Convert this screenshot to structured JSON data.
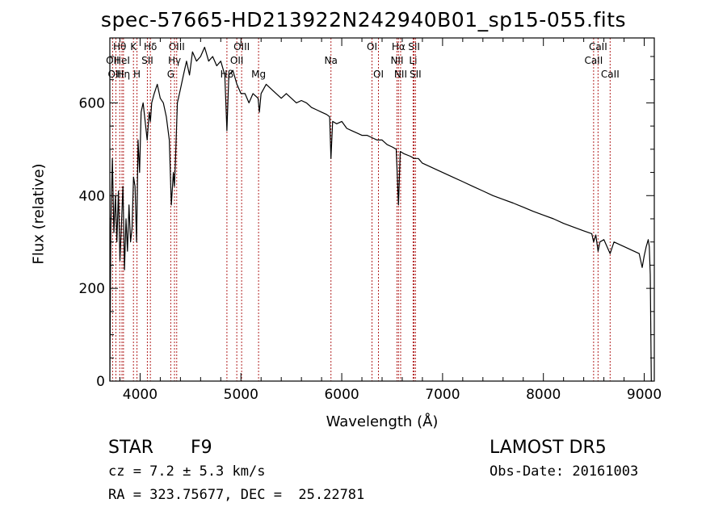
{
  "chart_data": {
    "type": "line",
    "title": "spec-57665-HD213922N242940B01_sp15-055.fits",
    "xlabel": "Wavelength (Å)",
    "ylabel": "Flux (relative)",
    "xlim": [
      3700,
      9100
    ],
    "ylim": [
      0,
      740
    ],
    "xticks": [
      4000,
      5000,
      6000,
      7000,
      8000,
      9000
    ],
    "yticks": [
      0,
      200,
      400,
      600
    ],
    "line_color": "#000000",
    "marker_color": "#b22222",
    "series": [
      {
        "x": [
          3700,
          3710,
          3725,
          3740,
          3755,
          3770,
          3785,
          3800,
          3815,
          3830,
          3845,
          3860,
          3875,
          3890,
          3905,
          3920,
          3935,
          3950,
          3965,
          3980,
          3995,
          4010,
          4030,
          4050,
          4070,
          4090,
          4102,
          4115,
          4140,
          4170,
          4200,
          4230,
          4260,
          4290,
          4310,
          4330,
          4340,
          4350,
          4370,
          4400,
          4430,
          4460,
          4490,
          4520,
          4560,
          4600,
          4640,
          4680,
          4720,
          4760,
          4800,
          4840,
          4861,
          4880,
          4920,
          4960,
          5000,
          5040,
          5080,
          5120,
          5170,
          5183,
          5200,
          5250,
          5300,
          5350,
          5400,
          5450,
          5500,
          5550,
          5600,
          5650,
          5700,
          5750,
          5800,
          5850,
          5880,
          5893,
          5910,
          5950,
          6000,
          6050,
          6100,
          6150,
          6200,
          6250,
          6300,
          6350,
          6400,
          6450,
          6500,
          6540,
          6563,
          6580,
          6620,
          6680,
          6720,
          6760,
          6800,
          6850,
          6900,
          6950,
          7000,
          7100,
          7200,
          7300,
          7400,
          7500,
          7600,
          7700,
          7800,
          7900,
          8000,
          8100,
          8200,
          8300,
          8400,
          8480,
          8498,
          8520,
          8542,
          8560,
          8600,
          8662,
          8700,
          8750,
          8800,
          8850,
          8900,
          8950,
          8980,
          9000,
          9020,
          9040,
          9050,
          9060,
          9070,
          9080
        ],
        "y": [
          0,
          330,
          480,
          320,
          400,
          300,
          410,
          260,
          340,
          420,
          240,
          350,
          280,
          380,
          300,
          330,
          440,
          420,
          300,
          520,
          450,
          580,
          600,
          560,
          520,
          580,
          560,
          600,
          620,
          640,
          610,
          600,
          570,
          520,
          380,
          450,
          420,
          470,
          600,
          630,
          660,
          690,
          660,
          710,
          690,
          700,
          720,
          690,
          700,
          680,
          690,
          660,
          540,
          660,
          670,
          640,
          620,
          620,
          600,
          620,
          610,
          580,
          620,
          640,
          630,
          620,
          610,
          620,
          610,
          600,
          605,
          600,
          590,
          585,
          580,
          575,
          570,
          480,
          560,
          555,
          560,
          545,
          540,
          535,
          530,
          530,
          525,
          520,
          520,
          510,
          505,
          500,
          380,
          495,
          490,
          485,
          480,
          480,
          470,
          465,
          460,
          455,
          450,
          440,
          430,
          420,
          410,
          400,
          392,
          384,
          375,
          366,
          358,
          350,
          340,
          332,
          324,
          318,
          300,
          315,
          280,
          300,
          305,
          275,
          300,
          295,
          290,
          285,
          280,
          275,
          245,
          270,
          290,
          305,
          290,
          230,
          0,
          0
        ]
      }
    ],
    "line_markers": [
      {
        "label": "Hθ",
        "x": 3798,
        "row": 1
      },
      {
        "label": "OII",
        "x": 3727,
        "row": 2
      },
      {
        "label": "HeI",
        "x": 3820,
        "row": 2
      },
      {
        "label": "OIII",
        "x": 3760,
        "row": 3
      },
      {
        "label": "Hη",
        "x": 3835,
        "row": 3
      },
      {
        "label": "K",
        "x": 3934,
        "row": 1
      },
      {
        "label": "H",
        "x": 3969,
        "row": 3
      },
      {
        "label": "SII",
        "x": 4072,
        "row": 2
      },
      {
        "label": "Hδ",
        "x": 4102,
        "row": 1
      },
      {
        "label": "OIII",
        "x": 4363,
        "row": 1
      },
      {
        "label": "Hγ",
        "x": 4341,
        "row": 2
      },
      {
        "label": "G",
        "x": 4304,
        "row": 3
      },
      {
        "label": "OIII",
        "x": 5007,
        "row": 1
      },
      {
        "label": "OII",
        "x": 4959,
        "row": 2
      },
      {
        "label": "Hβ",
        "x": 4861,
        "row": 3
      },
      {
        "label": "Mg",
        "x": 5175,
        "row": 3
      },
      {
        "label": "Na",
        "x": 5893,
        "row": 2
      },
      {
        "label": "OI",
        "x": 6300,
        "row": 1
      },
      {
        "label": "OI",
        "x": 6364,
        "row": 3
      },
      {
        "label": "Hα",
        "x": 6563,
        "row": 1
      },
      {
        "label": "NII",
        "x": 6548,
        "row": 2
      },
      {
        "label": "NII",
        "x": 6584,
        "row": 3
      },
      {
        "label": "SII",
        "x": 6717,
        "row": 1
      },
      {
        "label": "Li",
        "x": 6708,
        "row": 2
      },
      {
        "label": "SII",
        "x": 6731,
        "row": 3
      },
      {
        "label": "CaII",
        "x": 8542,
        "row": 1
      },
      {
        "label": "CaII",
        "x": 8498,
        "row": 2
      },
      {
        "label": "CaII",
        "x": 8662,
        "row": 3
      }
    ]
  },
  "footer": {
    "object_class": "STAR",
    "subclass": "F9",
    "survey": "LAMOST DR5",
    "cz": "cz = 7.2 ± 5.3 km/s",
    "obs_date": "Obs-Date: 20161003",
    "coords": "RA = 323.75677, DEC =  25.22781"
  }
}
